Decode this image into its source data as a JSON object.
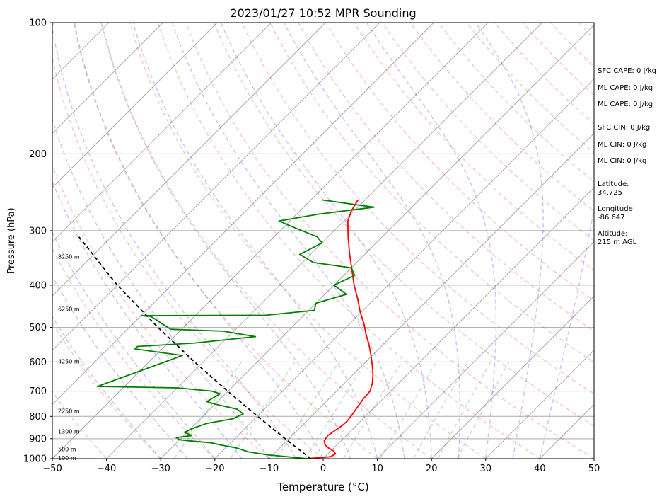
{
  "chart_data": {
    "type": "line",
    "title": "2023/01/27 10:52 MPR Sounding",
    "xlabel": "Temperature (°C)",
    "ylabel": "Pressure (hPa)",
    "xlim": [
      -50,
      50
    ],
    "ylim": [
      1000,
      100
    ],
    "y_scale": "log",
    "skew": "skew-T log-P",
    "grid": true,
    "x_ticks": [
      "−50",
      "−40",
      "−30",
      "−20",
      "−10",
      "0",
      "10",
      "20",
      "30",
      "40",
      "50"
    ],
    "y_ticks": [
      "100",
      "200",
      "300",
      "400",
      "500",
      "600",
      "700",
      "800",
      "900",
      "1000"
    ],
    "series": [
      {
        "color": "#ff0000",
        "points": [
          [
            1000,
            -3
          ],
          [
            990,
            1
          ],
          [
            975,
            1.4
          ],
          [
            960,
            0.5
          ],
          [
            945,
            -1
          ],
          [
            930,
            -2.2
          ],
          [
            910,
            -3.1
          ],
          [
            885,
            -3.4
          ],
          [
            860,
            -3.0
          ],
          [
            840,
            -2.6
          ],
          [
            820,
            -2.5
          ],
          [
            790,
            -2.8
          ],
          [
            760,
            -3.2
          ],
          [
            730,
            -3.6
          ],
          [
            700,
            -3.8
          ],
          [
            670,
            -4.9
          ],
          [
            640,
            -6.4
          ],
          [
            610,
            -8.2
          ],
          [
            580,
            -10.2
          ],
          [
            550,
            -12.4
          ],
          [
            520,
            -14.9
          ],
          [
            490,
            -17.4
          ],
          [
            460,
            -20.3
          ],
          [
            430,
            -23.1
          ],
          [
            400,
            -26.3
          ],
          [
            370,
            -29.4
          ],
          [
            340,
            -32.8
          ],
          [
            310,
            -36.3
          ],
          [
            285,
            -39.3
          ],
          [
            270,
            -40.5
          ],
          [
            255,
            -41.3
          ]
        ]
      },
      {
        "color": "#008000",
        "points": [
          [
            1000,
            -3
          ],
          [
            990,
            -7
          ],
          [
            980,
            -11
          ],
          [
            965,
            -15
          ],
          [
            945,
            -18
          ],
          [
            930,
            -21.5
          ],
          [
            920,
            -23.5
          ],
          [
            910,
            -28
          ],
          [
            905,
            -30
          ],
          [
            895,
            -31
          ],
          [
            885,
            -28.5
          ],
          [
            870,
            -30.5
          ],
          [
            850,
            -29.5
          ],
          [
            830,
            -28
          ],
          [
            810,
            -24
          ],
          [
            790,
            -23
          ],
          [
            770,
            -25
          ],
          [
            750,
            -30
          ],
          [
            740,
            -32
          ],
          [
            710,
            -31
          ],
          [
            700,
            -33
          ],
          [
            688,
            -40
          ],
          [
            683,
            -55
          ],
          [
            580,
            -45
          ],
          [
            570,
            -50
          ],
          [
            560,
            -55
          ],
          [
            553,
            -55
          ],
          [
            543,
            -45
          ],
          [
            525,
            -35
          ],
          [
            510,
            -42
          ],
          [
            505,
            -52
          ],
          [
            472,
            -58
          ],
          [
            470,
            -60
          ],
          [
            469,
            -37
          ],
          [
            457,
            -29
          ],
          [
            440,
            -30
          ],
          [
            420,
            -26
          ],
          [
            400,
            -30
          ],
          [
            380,
            -28
          ],
          [
            365,
            -30
          ],
          [
            355,
            -38
          ],
          [
            340,
            -42
          ],
          [
            320,
            -40
          ],
          [
            310,
            -42
          ],
          [
            295,
            -48
          ],
          [
            285,
            -52
          ],
          [
            275,
            -46
          ],
          [
            265,
            -37
          ],
          [
            255,
            -48
          ]
        ]
      },
      {
        "color": "#000000",
        "dashed": true,
        "points": [
          [
            1000,
            -2.3
          ],
          [
            900,
            -10.7
          ],
          [
            800,
            -19.9
          ],
          [
            700,
            -30.1
          ],
          [
            600,
            -41.6
          ],
          [
            500,
            -54.7
          ],
          [
            400,
            -70
          ],
          [
            310,
            -86
          ]
        ]
      }
    ],
    "height_labels": [
      {
        "p": 1000,
        "text": "100 m"
      },
      {
        "p": 955,
        "text": "500 m"
      },
      {
        "p": 870,
        "text": "1300 m"
      },
      {
        "p": 780,
        "text": "2250 m"
      },
      {
        "p": 600,
        "text": "4250 m"
      },
      {
        "p": 455,
        "text": "6250 m"
      },
      {
        "p": 345,
        "text": "8250 m"
      }
    ],
    "annotations": [
      "SFC CAPE: 0 J/kg",
      "ML CAPE: 0 J/kg",
      "ML CAPE: 0 J/kg",
      "SFC CIN: 0 J/kg",
      "ML CIN: 0 J/kg",
      "ML CIN: 0 J/kg",
      "Latitude:\n34.725",
      "Longitude:\n-86.647",
      "Altitude:\n215 m AGL"
    ]
  }
}
